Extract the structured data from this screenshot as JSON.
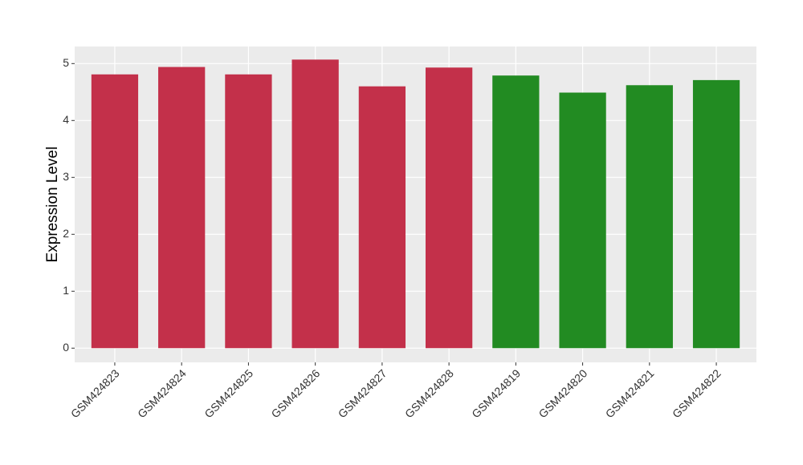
{
  "chart_data": {
    "type": "bar",
    "y_label": "Expression Level",
    "categories": [
      "GSM424823",
      "GSM424824",
      "GSM424825",
      "GSM424826",
      "GSM424827",
      "GSM424828",
      "GSM424819",
      "GSM424820",
      "GSM424821",
      "GSM424822"
    ],
    "values": [
      4.81,
      4.94,
      4.81,
      5.07,
      4.6,
      4.93,
      4.79,
      4.49,
      4.62,
      4.71
    ],
    "colors": [
      "#c3304a",
      "#c3304a",
      "#c3304a",
      "#c3304a",
      "#c3304a",
      "#c3304a",
      "#228b22",
      "#228b22",
      "#228b22",
      "#228b22"
    ],
    "ylim": [
      -0.25,
      5.3
    ],
    "yticks": [
      0,
      1,
      2,
      3,
      4,
      5
    ],
    "grid": true
  }
}
